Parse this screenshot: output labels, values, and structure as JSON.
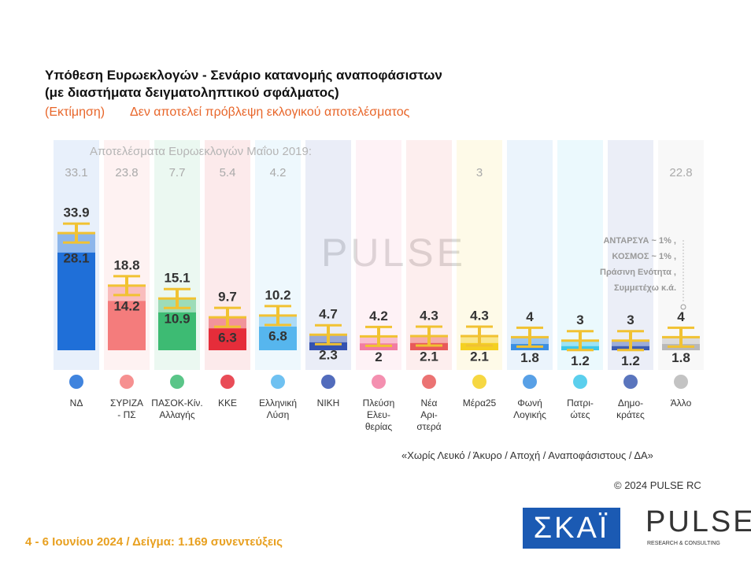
{
  "chart_data": {
    "type": "range_bar",
    "title": [
      "Υπόθεση Ευρωεκλογών - Σενάριο κατανομής αναποφάσιστων",
      "(με διαστήματα δειγματοληπτικού σφάλματος)"
    ],
    "subtitle": [
      "(Εκτίμηση)",
      "Δεν αποτελεί πρόβλεψη εκλογικού αποτελέσματος"
    ],
    "categories": [
      "ΝΔ",
      "ΣΥΡΙΖΑ\n- ΠΣ",
      "ΠΑΣΟΚ-Κίν.\nΑλλαγής",
      "ΚΚΕ",
      "Ελληνική\nΛύση",
      "ΝΙΚΗ",
      "Πλεύση\nΕλευ-\nθερίας",
      "Νέα\nΑρι-\nστερά",
      "Μέρα25",
      "Φωνή\nΛογικής",
      "Πατρι-\nώτες",
      "Δημο-\nκράτες",
      "Άλλο"
    ],
    "colors": [
      "#1f6fd8",
      "#f47c7c",
      "#3dbb73",
      "#e52d3a",
      "#56b6ee",
      "#3452b0",
      "#f27ca2",
      "#e85a5a",
      "#f4d021",
      "#3b8fe2",
      "#3ec7ea",
      "#3d5db2",
      "#b8b8b8"
    ],
    "high": {
      "values": [
        33.9,
        18.8,
        15.1,
        9.7,
        10.2,
        4.7,
        4.2,
        4.3,
        4.3,
        4,
        3,
        3,
        4
      ]
    },
    "low": {
      "values": [
        28.1,
        14.2,
        10.9,
        6.3,
        6.8,
        2.3,
        2,
        2.1,
        2.1,
        1.8,
        1.2,
        1.2,
        1.8
      ]
    },
    "previous": {
      "label": "Αποτελέσματα Ευρωεκλογών Μαΐου 2019:",
      "values": [
        33.1,
        23.8,
        7.7,
        5.4,
        4.2,
        null,
        null,
        null,
        3,
        null,
        null,
        null,
        22.8
      ]
    },
    "ylim": [
      0,
      35
    ],
    "annotation": [
      "ΑΝΤΑΡΣΥΑ ~ 1% ,",
      "ΚΟΣΜΟΣ ~ 1% ,",
      "Πράσινη Ενότητα ,",
      "Συμμετέχω   κ.ά."
    ],
    "note": "«Χωρίς Λευκό / Άκυρο / Αποχή / Αναποφάσιστους / ΔΑ»",
    "copyright": "© 2024 PULSE RC",
    "footer": "4 - 6  Ιουνίου 2024  /  Δείγμα:  1.169 συνεντεύξεις",
    "watermark": "PULSE",
    "logo_broadcaster": "ΣΚΑΪ",
    "logo_pollster": "PULSE",
    "logo_pollster_sub": "RESEARCH & CONSULTING"
  }
}
